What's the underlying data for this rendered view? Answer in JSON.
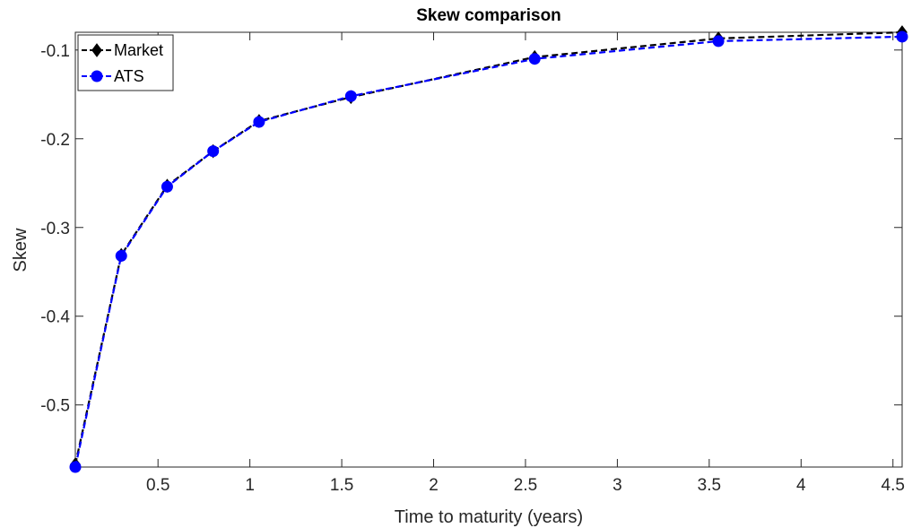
{
  "chart_data": {
    "type": "line",
    "title": "Skew comparison",
    "xlabel": "Time to maturity (years)",
    "ylabel": "Skew",
    "xlim": [
      0.05,
      4.55
    ],
    "ylim": [
      -0.57,
      -0.08
    ],
    "xticks": [
      0.5,
      1,
      1.5,
      2,
      2.5,
      3,
      3.5,
      4,
      4.5
    ],
    "xtick_labels": [
      "0.5",
      "1",
      "1.5",
      "2",
      "2.5",
      "3",
      "3.5",
      "4",
      "4.5"
    ],
    "yticks": [
      -0.5,
      -0.4,
      -0.3,
      -0.2,
      -0.1
    ],
    "ytick_labels": [
      "-0.5",
      "-0.4",
      "-0.3",
      "-0.2",
      "-0.1"
    ],
    "grid": false,
    "legend_position": "top-left",
    "x": [
      0.05,
      0.3,
      0.55,
      0.8,
      1.05,
      1.55,
      2.55,
      3.55,
      4.55
    ],
    "series": [
      {
        "name": "Market",
        "color": "#000000",
        "marker": "diamond",
        "line_style": "dashed",
        "values": [
          -0.567,
          -0.331,
          -0.253,
          -0.214,
          -0.18,
          -0.153,
          -0.108,
          -0.087,
          -0.08
        ]
      },
      {
        "name": "ATS",
        "color": "#0000ff",
        "marker": "circle",
        "line_style": "dashed",
        "values": [
          -0.57,
          -0.332,
          -0.254,
          -0.214,
          -0.181,
          -0.152,
          -0.11,
          -0.09,
          -0.085
        ]
      }
    ]
  }
}
